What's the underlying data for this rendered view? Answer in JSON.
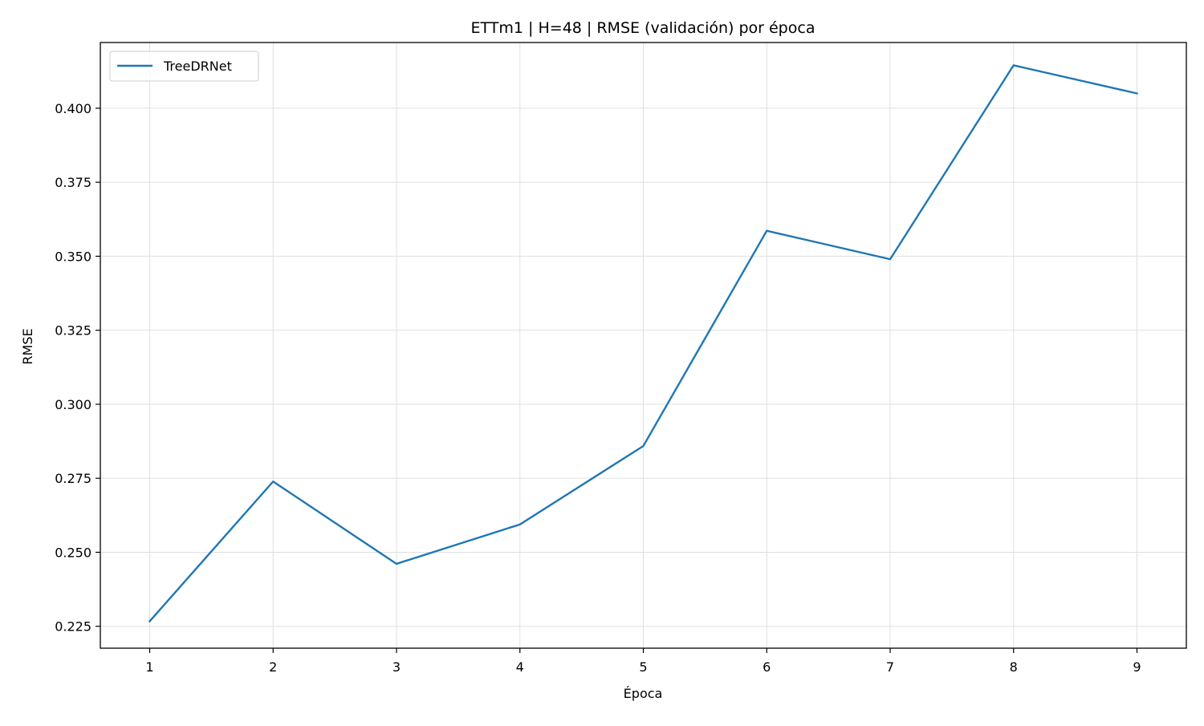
{
  "chart_data": {
    "type": "line",
    "title": "ETTm1 | H=48 | RMSE (validación) por época",
    "xlabel": "Época",
    "ylabel": "RMSE",
    "x": [
      1,
      2,
      3,
      4,
      5,
      6,
      7,
      8,
      9
    ],
    "x_ticks": [
      "1",
      "2",
      "3",
      "4",
      "5",
      "6",
      "7",
      "8",
      "9"
    ],
    "y_ticks": [
      "0.225",
      "0.250",
      "0.275",
      "0.300",
      "0.325",
      "0.350",
      "0.375",
      "0.400"
    ],
    "xlim": [
      0.6,
      9.4
    ],
    "ylim": [
      0.2176,
      0.4222
    ],
    "grid": true,
    "legend_position": "top-left",
    "series": [
      {
        "name": "TreeDRNet",
        "color": "#1f77b4",
        "values": [
          0.2267,
          0.2739,
          0.2461,
          0.2594,
          0.2859,
          0.3586,
          0.349,
          0.4145,
          0.405
        ]
      }
    ]
  }
}
